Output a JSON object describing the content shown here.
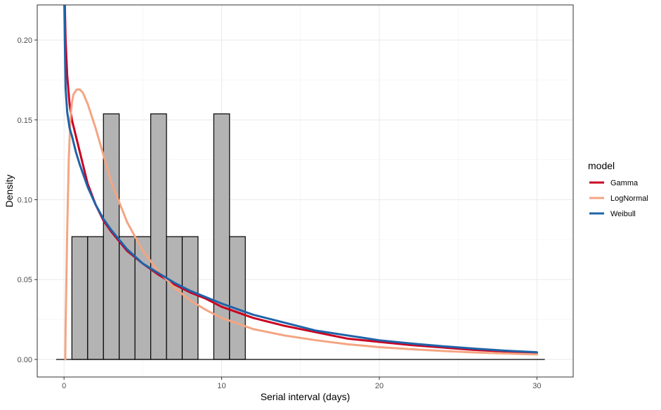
{
  "chart_data": {
    "type": "histogram-with-density-curves",
    "xlabel": "Serial interval (days)",
    "ylabel": "Density",
    "xlim": [
      -1.7,
      32.3
    ],
    "ylim": [
      -0.011,
      0.222
    ],
    "x_ticks": [
      0,
      10,
      20,
      30
    ],
    "y_ticks": [
      0.0,
      0.05,
      0.1,
      0.15,
      0.2
    ],
    "x_tick_labels": [
      "0",
      "10",
      "20",
      "30"
    ],
    "y_tick_labels": [
      "0.00",
      "0.05",
      "0.10",
      "0.15",
      "0.20"
    ],
    "grid": true,
    "histogram": {
      "bin_width": 1,
      "fill": "#b3b3b3",
      "bins": [
        {
          "x0": 0.5,
          "x1": 1.5,
          "density": 0.0769
        },
        {
          "x0": 1.5,
          "x1": 2.5,
          "density": 0.0769
        },
        {
          "x0": 2.5,
          "x1": 3.5,
          "density": 0.1538
        },
        {
          "x0": 3.5,
          "x1": 4.5,
          "density": 0.0769
        },
        {
          "x0": 4.5,
          "x1": 5.5,
          "density": 0.0769
        },
        {
          "x0": 5.5,
          "x1": 6.5,
          "density": 0.1538
        },
        {
          "x0": 6.5,
          "x1": 7.5,
          "density": 0.0769
        },
        {
          "x0": 7.5,
          "x1": 8.5,
          "density": 0.0769
        },
        {
          "x0": 9.5,
          "x1": 10.5,
          "density": 0.1538
        },
        {
          "x0": 10.5,
          "x1": 11.5,
          "density": 0.0769
        }
      ],
      "baseline_extent": [
        -0.5,
        30.5
      ]
    },
    "legend": {
      "title": "model",
      "placement": "right",
      "entries": [
        {
          "name": "Gamma",
          "color": "#ca0020"
        },
        {
          "name": "LogNormal",
          "color": "#f4a582"
        },
        {
          "name": "Weibull",
          "color": "#1f63a8"
        }
      ]
    },
    "series": [
      {
        "name": "Gamma",
        "color": "#ca0020",
        "x": [
          0.01,
          0.05,
          0.1,
          0.2,
          0.35,
          0.5,
          0.75,
          1,
          1.5,
          2,
          2.5,
          3,
          4,
          5,
          6,
          7,
          8,
          9,
          10,
          12,
          14,
          16,
          18,
          20,
          22,
          24,
          26,
          28,
          30
        ],
        "y": [
          0.222,
          0.222,
          0.2,
          0.178,
          0.16,
          0.15,
          0.14,
          0.13,
          0.11,
          0.097,
          0.087,
          0.08,
          0.068,
          0.06,
          0.053,
          0.047,
          0.042,
          0.038,
          0.033,
          0.026,
          0.021,
          0.017,
          0.013,
          0.011,
          0.009,
          0.0075,
          0.006,
          0.005,
          0.004
        ]
      },
      {
        "name": "LogNormal",
        "color": "#f4a582",
        "x": [
          0.08,
          0.1,
          0.2,
          0.3,
          0.4,
          0.5,
          0.6,
          0.8,
          1.0,
          1.2,
          1.5,
          2,
          2.5,
          3,
          4,
          5,
          6,
          7,
          8,
          9,
          10,
          12,
          14,
          16,
          18,
          20,
          22,
          24,
          26,
          28,
          30
        ],
        "y": [
          0.0,
          0.02,
          0.08,
          0.125,
          0.15,
          0.161,
          0.166,
          0.169,
          0.169,
          0.167,
          0.16,
          0.145,
          0.128,
          0.111,
          0.086,
          0.068,
          0.055,
          0.045,
          0.037,
          0.031,
          0.026,
          0.019,
          0.015,
          0.012,
          0.0095,
          0.0077,
          0.0064,
          0.0053,
          0.0044,
          0.0037,
          0.0031
        ]
      },
      {
        "name": "Weibull",
        "color": "#1f63a8",
        "x": [
          0.005,
          0.02,
          0.05,
          0.1,
          0.2,
          0.35,
          0.5,
          0.75,
          1,
          1.5,
          2,
          2.5,
          3,
          4,
          5,
          6,
          7,
          8,
          9,
          10,
          12,
          14,
          16,
          18,
          20,
          22,
          24,
          26,
          28,
          30
        ],
        "y": [
          0.222,
          0.222,
          0.2,
          0.17,
          0.155,
          0.145,
          0.14,
          0.13,
          0.122,
          0.108,
          0.097,
          0.088,
          0.081,
          0.069,
          0.06,
          0.054,
          0.048,
          0.043,
          0.039,
          0.035,
          0.028,
          0.023,
          0.018,
          0.015,
          0.012,
          0.01,
          0.0083,
          0.0068,
          0.0055,
          0.0045
        ]
      }
    ]
  }
}
